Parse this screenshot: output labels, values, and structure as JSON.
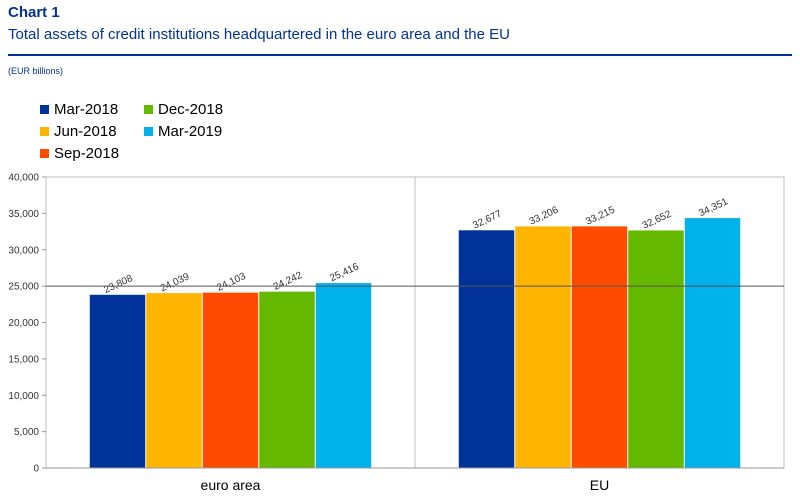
{
  "header": {
    "chart_number": "Chart 1",
    "title": "Total assets of credit institutions headquartered in the euro area and the EU",
    "unit": "(EUR billions)"
  },
  "colors": {
    "title": "#003299",
    "series": [
      "#003299",
      "#FFB400",
      "#FF4B00",
      "#65B800",
      "#00B1EA"
    ]
  },
  "chart_data": {
    "type": "bar",
    "categories": [
      "euro area",
      "EU"
    ],
    "series": [
      {
        "name": "Mar-2018",
        "values": [
          23808,
          32677
        ]
      },
      {
        "name": "Jun-2018",
        "values": [
          24039,
          33206
        ]
      },
      {
        "name": "Sep-2018",
        "values": [
          24103,
          33215
        ]
      },
      {
        "name": "Dec-2018",
        "values": [
          24242,
          32652
        ]
      },
      {
        "name": "Mar-2019",
        "values": [
          25416,
          34351
        ]
      }
    ],
    "value_labels": [
      [
        "23,808",
        "32,677"
      ],
      [
        "24,039",
        "33,206"
      ],
      [
        "24,103",
        "33,215"
      ],
      [
        "24,242",
        "32,652"
      ],
      [
        "25,416",
        "34,351"
      ]
    ],
    "yticks": [
      "0",
      "5,000",
      "10,000",
      "15,000",
      "20,000",
      "25,000",
      "30,000",
      "35,000",
      "40,000"
    ],
    "ylim": [
      0,
      40000
    ],
    "ystep": 5000,
    "reference_line": 25000,
    "legend_position": "top-left",
    "grid": false
  }
}
